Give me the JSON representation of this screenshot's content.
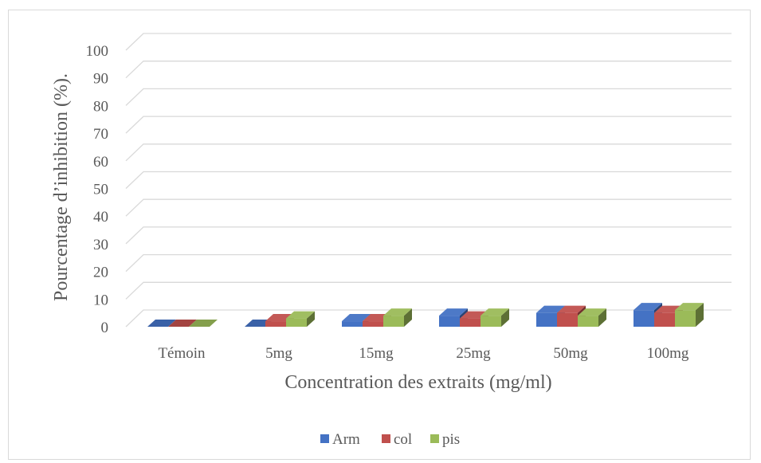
{
  "chart_data": {
    "type": "bar",
    "title": "",
    "xlabel": "Concentration des extraits (mg/ml)",
    "ylabel": "Pourcentage d’inhibition (%).",
    "ylim": [
      0,
      100
    ],
    "yticks": [
      0,
      10,
      20,
      30,
      40,
      50,
      60,
      70,
      80,
      90,
      100
    ],
    "grid": true,
    "legend_position": "bottom",
    "categories": [
      "Témoin",
      "5mg",
      "15mg",
      "25mg",
      "50mg",
      "100mg"
    ],
    "series": [
      {
        "name": "Arm",
        "color": "#4472C4",
        "values": [
          0,
          0,
          2,
          4,
          5,
          6
        ]
      },
      {
        "name": "col",
        "color": "#C0504D",
        "values": [
          0,
          2,
          2,
          3,
          5,
          5
        ]
      },
      {
        "name": "pis",
        "color": "#9BBB59",
        "values": [
          0,
          3,
          4,
          4,
          4,
          6
        ]
      }
    ]
  }
}
